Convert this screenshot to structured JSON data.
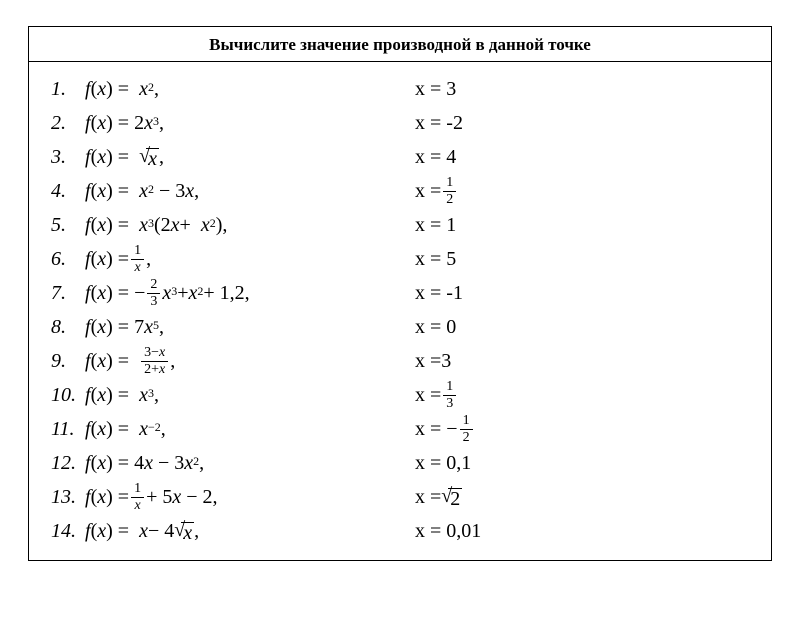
{
  "title": "Вычислите значение производной в данной точке",
  "colors": {
    "text": "#000000",
    "background": "#ffffff",
    "border": "#000000"
  },
  "typography": {
    "title_fontsize": 17,
    "title_weight": "bold",
    "row_fontsize": 20,
    "row_style": "italic-mixed",
    "font_family": "Cambria Math / Times New Roman"
  },
  "rows": [
    {
      "n": "1.",
      "func_html": "<span class='it'>f</span>(<span class='it'>x</span>) = &nbsp;<span class='it'>x</span><span class='sup'>2</span>,",
      "x_html": "x = 3"
    },
    {
      "n": "2.",
      "func_html": "<span class='it'>f</span>(<span class='it'>x</span>) = 2<span class='it'>x</span><span class='sup'>3</span>,",
      "x_html": "x = -2"
    },
    {
      "n": "3.",
      "func_html": "<span class='it'>f</span>(<span class='it'>x</span>) = &nbsp;<span class='sqrt'><span class='sqrt-sym'>√</span><span class='sqrt-arg'><span class='it'>x</span></span></span> ,",
      "x_html": "x = 4"
    },
    {
      "n": "4.",
      "func_html": "<span class='it'>f</span>(<span class='it'>x</span>) = &nbsp;<span class='it'>x</span><span class='sup'>2</span> &nbsp;− 3<span class='it'>x</span>,",
      "x_html": "x = <span class='frac'><span class='fn'>1</span><span class='fd'>2</span></span>"
    },
    {
      "n": "5.",
      "func_html": "<span class='it'>f</span>(<span class='it'>x</span>) = &nbsp;<span class='it'>x</span><span class='sup'>3</span>(2<span class='it'>x</span> + &nbsp;<span class='it'>x</span><span class='sup'>2</span>),",
      "x_html": "x = 1"
    },
    {
      "n": "6.",
      "func_html": "<span class='it'>f</span>(<span class='it'>x</span>) = <span class='frac'><span class='fn'>1</span><span class='fd'><span class='it'>x</span></span></span>,",
      "x_html": "x = 5"
    },
    {
      "n": "7.",
      "func_html": "<span class='it'>f</span>(<span class='it'>x</span>) = − <span class='frac'><span class='fn'>2</span><span class='fd'>3</span></span><span class='it'>x</span><span class='sup'>3</span> + <span class='it'>x</span><span class='sup'>2</span> + 1,2,",
      "x_html": "x = -1"
    },
    {
      "n": "8.",
      "func_html": "<span class='it'>f</span>(<span class='it'>x</span>) = 7<span class='it'>x</span><span class='sup'>5</span>,",
      "x_html": "x = 0"
    },
    {
      "n": "9.",
      "func_html": "<span class='it'>f</span>(<span class='it'>x</span>) = &nbsp;<span class='frac'><span class='fn'>3−<span class='it'>x</span></span><span class='fd'>2+<span class='it'>x</span></span></span>,",
      "x_html": "x =3"
    },
    {
      "n": "10.",
      "func_html": "<span class='it'>f</span>(<span class='it'>x</span>) = &nbsp;<span class='it'>x</span><span class='sup'>3</span>,",
      "x_html": "x =<span class='frac'><span class='fn'>1</span><span class='fd'>3</span></span>"
    },
    {
      "n": "11.",
      "func_html": "<span class='it'>f</span>(<span class='it'>x</span>) = &nbsp;<span class='it'>x</span><span class='sup'>−2</span>,",
      "x_html": "x = − <span class='frac'><span class='fn'>1</span><span class='fd'>2</span></span>"
    },
    {
      "n": "12.",
      "func_html": "<span class='it'>f</span>(<span class='it'>x</span>) = 4<span class='it'>x</span> &nbsp;− 3<span class='it'>x</span><span class='sup'>2</span>,",
      "x_html": "x = 0,1"
    },
    {
      "n": "13.",
      "func_html": "<span class='it'>f</span>(<span class='it'>x</span>) = <span class='frac'><span class='fn'>1</span><span class='fd'><span class='it'>x</span></span></span> + 5<span class='it'>x</span> &nbsp;− 2,",
      "x_html": "x = <span class='sqrt'><span class='sqrt-sym'>√</span><span class='sqrt-arg'>2</span></span>"
    },
    {
      "n": "14.",
      "func_html": "<span class='it'>f</span>(<span class='it'>x</span>) = &nbsp;<span class='it'>x</span> − 4<span class='sqrt'><span class='sqrt-sym'>√</span><span class='sqrt-arg'><span class='it'>x</span></span></span>,",
      "x_html": "x = 0,01"
    }
  ]
}
